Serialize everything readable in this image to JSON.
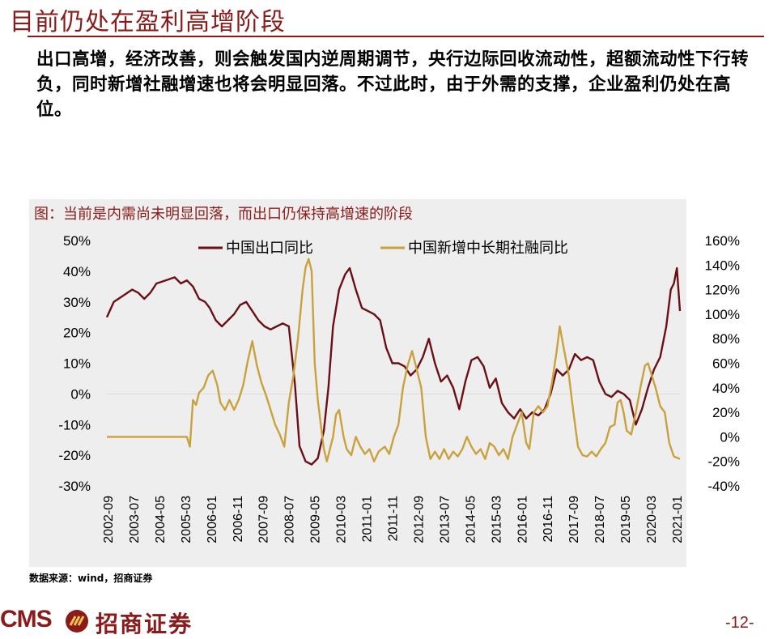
{
  "page": {
    "title": "目前仍处在盈利高增阶段",
    "paragraph": "出口高增，经济改善，则会触发国内逆周期调节，央行边际回收流动性，超额流动性下行转负，同时新增社融增速也将会明显回落。不过此时，由于外需的支撑，企业盈利仍处在高位。",
    "source": "数据来源：wind，招商证券",
    "logo_cms": "CMS",
    "logo_name": "招商证券",
    "page_number": "-12-"
  },
  "colors": {
    "brand": "#8b1a1a",
    "export": "#6b0f16",
    "tsf": "#c9a23e",
    "panel": "#eeeeee"
  },
  "chart_data": {
    "type": "line",
    "title": "图：当前是内需尚未明显回落，而出口仍保持高增速的阶段",
    "categories": [
      "2002-09",
      "2003-07",
      "2004-05",
      "2005-03",
      "2006-01",
      "2006-11",
      "2007-09",
      "2008-07",
      "2009-05",
      "2010-03",
      "2011-01",
      "2011-11",
      "2012-09",
      "2013-07",
      "2014-05",
      "2015-03",
      "2016-01",
      "2016-11",
      "2017-09",
      "2018-07",
      "2019-05",
      "2020-03",
      "2021-01"
    ],
    "left_axis": {
      "ticks": [
        "50%",
        "40%",
        "30%",
        "20%",
        "10%",
        "0%",
        "-10%",
        "-20%",
        "-30%"
      ],
      "ylim": [
        -30,
        50
      ]
    },
    "right_axis": {
      "ticks": [
        "160%",
        "140%",
        "120%",
        "100%",
        "80%",
        "60%",
        "40%",
        "20%",
        "0%",
        "-20%",
        "-40%"
      ],
      "ylim": [
        -40,
        160
      ]
    },
    "legend_position": "top",
    "series": [
      {
        "name": "中国出口同比",
        "axis": "left",
        "points": [
          [
            2002.67,
            25
          ],
          [
            2002.9,
            30
          ],
          [
            2003.2,
            32
          ],
          [
            2003.5,
            34
          ],
          [
            2003.7,
            33
          ],
          [
            2003.9,
            31
          ],
          [
            2004.1,
            33
          ],
          [
            2004.3,
            36
          ],
          [
            2004.6,
            37
          ],
          [
            2004.9,
            38
          ],
          [
            2005.1,
            36
          ],
          [
            2005.3,
            37
          ],
          [
            2005.5,
            35
          ],
          [
            2005.7,
            31
          ],
          [
            2005.9,
            30
          ],
          [
            2006.05,
            28
          ],
          [
            2006.25,
            24
          ],
          [
            2006.45,
            22
          ],
          [
            2006.65,
            24
          ],
          [
            2006.85,
            26
          ],
          [
            2007.05,
            29
          ],
          [
            2007.25,
            30
          ],
          [
            2007.45,
            27
          ],
          [
            2007.65,
            24
          ],
          [
            2007.85,
            22
          ],
          [
            2008.05,
            21
          ],
          [
            2008.25,
            22
          ],
          [
            2008.45,
            23
          ],
          [
            2008.65,
            22
          ],
          [
            2008.85,
            3
          ],
          [
            2009.0,
            -17
          ],
          [
            2009.2,
            -22
          ],
          [
            2009.4,
            -23
          ],
          [
            2009.6,
            -21
          ],
          [
            2009.8,
            -12
          ],
          [
            2009.95,
            2
          ],
          [
            2010.1,
            22
          ],
          [
            2010.3,
            34
          ],
          [
            2010.5,
            39
          ],
          [
            2010.65,
            41
          ],
          [
            2010.85,
            34
          ],
          [
            2011.05,
            28
          ],
          [
            2011.25,
            27
          ],
          [
            2011.45,
            26
          ],
          [
            2011.65,
            24
          ],
          [
            2011.85,
            15
          ],
          [
            2012.05,
            10
          ],
          [
            2012.25,
            10
          ],
          [
            2012.45,
            9
          ],
          [
            2012.65,
            6
          ],
          [
            2012.85,
            8
          ],
          [
            2013.05,
            12
          ],
          [
            2013.25,
            18
          ],
          [
            2013.45,
            10
          ],
          [
            2013.65,
            4
          ],
          [
            2013.85,
            6
          ],
          [
            2014.05,
            2
          ],
          [
            2014.25,
            -5
          ],
          [
            2014.45,
            4
          ],
          [
            2014.65,
            11
          ],
          [
            2014.85,
            12
          ],
          [
            2015.05,
            9
          ],
          [
            2015.25,
            2
          ],
          [
            2015.45,
            5
          ],
          [
            2015.65,
            -3
          ],
          [
            2015.85,
            -6
          ],
          [
            2016.05,
            -8
          ],
          [
            2016.25,
            -5
          ],
          [
            2016.45,
            -8
          ],
          [
            2016.65,
            -6
          ],
          [
            2016.85,
            -7
          ],
          [
            2017.05,
            -5
          ],
          [
            2017.25,
            0
          ],
          [
            2017.45,
            8
          ],
          [
            2017.65,
            6
          ],
          [
            2017.85,
            8
          ],
          [
            2018.05,
            13
          ],
          [
            2018.25,
            11
          ],
          [
            2018.45,
            12
          ],
          [
            2018.65,
            11
          ],
          [
            2018.85,
            4
          ],
          [
            2019.05,
            0
          ],
          [
            2019.25,
            -1
          ],
          [
            2019.45,
            1
          ],
          [
            2019.65,
            0
          ],
          [
            2019.85,
            -2
          ],
          [
            2020.05,
            -10
          ],
          [
            2020.25,
            -5
          ],
          [
            2020.45,
            2
          ],
          [
            2020.65,
            8
          ],
          [
            2020.85,
            12
          ],
          [
            2021.05,
            22
          ],
          [
            2021.2,
            34
          ],
          [
            2021.3,
            36
          ],
          [
            2021.4,
            41
          ],
          [
            2021.5,
            27
          ]
        ]
      },
      {
        "name": "中国新增中长期社融同比",
        "axis": "right",
        "points": [
          [
            2002.67,
            0
          ],
          [
            2003.5,
            0
          ],
          [
            2004.5,
            0
          ],
          [
            2005.3,
            0
          ],
          [
            2005.4,
            -8
          ],
          [
            2005.5,
            30
          ],
          [
            2005.6,
            26
          ],
          [
            2005.7,
            36
          ],
          [
            2005.85,
            40
          ],
          [
            2006.0,
            50
          ],
          [
            2006.15,
            54
          ],
          [
            2006.3,
            42
          ],
          [
            2006.4,
            28
          ],
          [
            2006.55,
            22
          ],
          [
            2006.7,
            30
          ],
          [
            2006.85,
            22
          ],
          [
            2007.0,
            30
          ],
          [
            2007.15,
            42
          ],
          [
            2007.3,
            62
          ],
          [
            2007.45,
            78
          ],
          [
            2007.6,
            58
          ],
          [
            2007.75,
            44
          ],
          [
            2007.9,
            34
          ],
          [
            2008.05,
            22
          ],
          [
            2008.2,
            10
          ],
          [
            2008.35,
            2
          ],
          [
            2008.5,
            -8
          ],
          [
            2008.65,
            28
          ],
          [
            2008.8,
            50
          ],
          [
            2008.95,
            80
          ],
          [
            2009.1,
            120
          ],
          [
            2009.2,
            138
          ],
          [
            2009.3,
            145
          ],
          [
            2009.4,
            135
          ],
          [
            2009.5,
            60
          ],
          [
            2009.6,
            30
          ],
          [
            2009.7,
            10
          ],
          [
            2009.8,
            -10
          ],
          [
            2009.9,
            -20
          ],
          [
            2010.0,
            -10
          ],
          [
            2010.1,
            0
          ],
          [
            2010.2,
            18
          ],
          [
            2010.3,
            22
          ],
          [
            2010.45,
            0
          ],
          [
            2010.55,
            -10
          ],
          [
            2010.7,
            -15
          ],
          [
            2010.85,
            0
          ],
          [
            2011.0,
            -8
          ],
          [
            2011.15,
            -14
          ],
          [
            2011.3,
            -10
          ],
          [
            2011.45,
            -20
          ],
          [
            2011.6,
            -12
          ],
          [
            2011.8,
            -8
          ],
          [
            2011.95,
            -14
          ],
          [
            2012.1,
            0
          ],
          [
            2012.25,
            10
          ],
          [
            2012.4,
            40
          ],
          [
            2012.55,
            58
          ],
          [
            2012.7,
            70
          ],
          [
            2012.85,
            55
          ],
          [
            2013.0,
            40
          ],
          [
            2013.15,
            0
          ],
          [
            2013.3,
            -18
          ],
          [
            2013.45,
            -12
          ],
          [
            2013.6,
            -18
          ],
          [
            2013.75,
            -10
          ],
          [
            2013.9,
            -18
          ],
          [
            2014.05,
            -12
          ],
          [
            2014.2,
            -16
          ],
          [
            2014.35,
            -10
          ],
          [
            2014.5,
            0
          ],
          [
            2014.65,
            -8
          ],
          [
            2014.8,
            -14
          ],
          [
            2014.95,
            -10
          ],
          [
            2015.1,
            -18
          ],
          [
            2015.25,
            -5
          ],
          [
            2015.4,
            -8
          ],
          [
            2015.55,
            -15
          ],
          [
            2015.7,
            -10
          ],
          [
            2015.85,
            -18
          ],
          [
            2016.0,
            0
          ],
          [
            2016.15,
            10
          ],
          [
            2016.3,
            20
          ],
          [
            2016.45,
            -5
          ],
          [
            2016.55,
            -10
          ],
          [
            2016.7,
            20
          ],
          [
            2016.85,
            25
          ],
          [
            2017.0,
            20
          ],
          [
            2017.15,
            25
          ],
          [
            2017.3,
            45
          ],
          [
            2017.45,
            70
          ],
          [
            2017.55,
            90
          ],
          [
            2017.7,
            70
          ],
          [
            2017.85,
            50
          ],
          [
            2018.0,
            20
          ],
          [
            2018.15,
            -8
          ],
          [
            2018.3,
            -15
          ],
          [
            2018.45,
            -16
          ],
          [
            2018.6,
            -12
          ],
          [
            2018.75,
            -16
          ],
          [
            2018.9,
            -10
          ],
          [
            2019.05,
            -5
          ],
          [
            2019.2,
            8
          ],
          [
            2019.35,
            10
          ],
          [
            2019.45,
            28
          ],
          [
            2019.55,
            30
          ],
          [
            2019.65,
            20
          ],
          [
            2019.75,
            5
          ],
          [
            2019.9,
            2
          ],
          [
            2020.05,
            20
          ],
          [
            2020.2,
            40
          ],
          [
            2020.35,
            58
          ],
          [
            2020.45,
            60
          ],
          [
            2020.55,
            52
          ],
          [
            2020.7,
            40
          ],
          [
            2020.85,
            25
          ],
          [
            2021.0,
            20
          ],
          [
            2021.15,
            -5
          ],
          [
            2021.3,
            -16
          ],
          [
            2021.5,
            -18
          ]
        ]
      }
    ]
  }
}
